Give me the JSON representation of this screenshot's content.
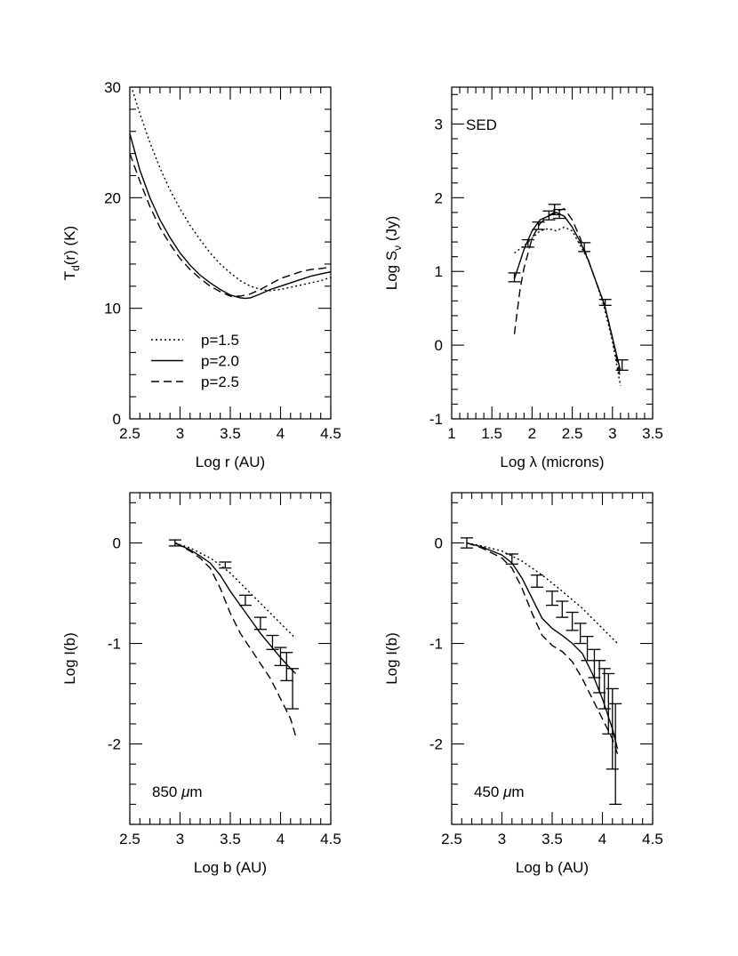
{
  "figure": {
    "panels": [
      {
        "name": "panel-temperature"
      },
      {
        "name": "panel-sed"
      },
      {
        "name": "panel-850"
      },
      {
        "name": "panel-450"
      }
    ]
  },
  "chart_data": [
    {
      "type": "line",
      "id": "temperature",
      "title": "",
      "xlabel": "Log r (AU)",
      "ylabel_parts": [
        "T",
        "d",
        "(r)  (K)"
      ],
      "xlim": [
        2.5,
        4.5
      ],
      "ylim": [
        0,
        30
      ],
      "xticks": [
        2.5,
        3,
        3.5,
        4,
        4.5
      ],
      "xtick_labels": [
        "2.5",
        "3",
        "3.5",
        "4",
        "4.5"
      ],
      "yticks": [
        0,
        10,
        20,
        30
      ],
      "ytick_labels": [
        "0",
        "10",
        "20",
        "30"
      ],
      "legend": {
        "placement": "lower-left",
        "entries": [
          {
            "label": "p=1.5",
            "style": "dotted"
          },
          {
            "label": "p=2.0",
            "style": "solid"
          },
          {
            "label": "p=2.5",
            "style": "dashed"
          }
        ]
      },
      "series": [
        {
          "name": "p=1.5",
          "style": "dotted",
          "x": [
            2.5,
            2.6,
            2.7,
            2.8,
            2.9,
            3.0,
            3.1,
            3.2,
            3.3,
            3.4,
            3.5,
            3.6,
            3.7,
            3.8,
            3.9,
            4.0,
            4.1,
            4.2,
            4.3,
            4.4,
            4.5
          ],
          "y": [
            30.5,
            27.6,
            25.0,
            22.7,
            20.7,
            19.0,
            17.5,
            16.2,
            15.0,
            14.0,
            13.2,
            12.5,
            12.0,
            11.7,
            11.6,
            11.7,
            11.9,
            12.1,
            12.3,
            12.5,
            12.8
          ]
        },
        {
          "name": "p=2.0",
          "style": "solid",
          "x": [
            2.5,
            2.6,
            2.7,
            2.8,
            2.9,
            3.0,
            3.1,
            3.2,
            3.3,
            3.4,
            3.5,
            3.6,
            3.65,
            3.7,
            3.8,
            3.9,
            4.0,
            4.1,
            4.2,
            4.3,
            4.4,
            4.5
          ],
          "y": [
            25.8,
            22.5,
            20.0,
            18.0,
            16.4,
            15.0,
            13.9,
            13.0,
            12.3,
            11.7,
            11.2,
            10.95,
            10.9,
            10.95,
            11.3,
            11.7,
            12.0,
            12.3,
            12.6,
            12.9,
            13.1,
            13.3
          ]
        },
        {
          "name": "p=2.5",
          "style": "dashed",
          "x": [
            2.5,
            2.6,
            2.7,
            2.8,
            2.9,
            3.0,
            3.1,
            3.2,
            3.3,
            3.4,
            3.5,
            3.6,
            3.7,
            3.8,
            3.9,
            4.0,
            4.1,
            4.2,
            4.3,
            4.4,
            4.5
          ],
          "y": [
            24.0,
            21.5,
            19.2,
            17.3,
            15.8,
            14.5,
            13.5,
            12.7,
            12.0,
            11.5,
            11.1,
            11.1,
            11.3,
            11.7,
            12.2,
            12.7,
            13.0,
            13.3,
            13.5,
            13.6,
            13.7
          ]
        }
      ]
    },
    {
      "type": "line",
      "id": "sed",
      "title": "",
      "annotation": "SED",
      "xlabel": "Log  λ  (microns)",
      "ylabel_parts": [
        "Log  S",
        "ν",
        "  (Jy)"
      ],
      "xlim": [
        1,
        3.5
      ],
      "ylim": [
        -1,
        3.5
      ],
      "xticks": [
        1,
        1.5,
        2,
        2.5,
        3,
        3.5
      ],
      "xtick_labels": [
        "1",
        "1.5",
        "2",
        "2.5",
        "3",
        "3.5"
      ],
      "yticks": [
        -1,
        0,
        1,
        2,
        3
      ],
      "ytick_labels": [
        "-1",
        "0",
        "1",
        "2",
        "3"
      ],
      "series": [
        {
          "name": "p=1.5",
          "style": "dotted",
          "x": [
            1.78,
            1.9,
            2.0,
            2.1,
            2.2,
            2.3,
            2.4,
            2.5,
            2.6,
            2.7,
            2.8,
            2.9,
            3.0,
            3.1
          ],
          "y": [
            1.25,
            1.35,
            1.45,
            1.55,
            1.58,
            1.55,
            1.6,
            1.55,
            1.35,
            1.15,
            0.85,
            0.5,
            0.05,
            -0.55
          ]
        },
        {
          "name": "p=2.0",
          "style": "solid",
          "x": [
            1.78,
            1.9,
            2.0,
            2.1,
            2.2,
            2.3,
            2.4,
            2.5,
            2.6,
            2.7,
            2.8,
            2.9,
            3.0,
            3.1
          ],
          "y": [
            0.9,
            1.3,
            1.55,
            1.7,
            1.75,
            1.8,
            1.75,
            1.6,
            1.4,
            1.15,
            0.85,
            0.55,
            0.1,
            -0.35
          ]
        },
        {
          "name": "p=2.5",
          "style": "dashed",
          "x": [
            1.78,
            1.85,
            1.9,
            2.0,
            2.1,
            2.2,
            2.3,
            2.4,
            2.5,
            2.6,
            2.7,
            2.8,
            2.9,
            3.0,
            3.1
          ],
          "y": [
            0.15,
            0.75,
            1.05,
            1.45,
            1.65,
            1.75,
            1.82,
            1.85,
            1.7,
            1.45,
            1.15,
            0.85,
            0.55,
            0.1,
            -0.45
          ]
        }
      ],
      "errorbars": [
        {
          "x": 1.78,
          "y": 0.92,
          "err": 0.06
        },
        {
          "x": 1.95,
          "y": 1.38,
          "err": 0.05
        },
        {
          "x": 2.08,
          "y": 1.62,
          "err": 0.05
        },
        {
          "x": 2.21,
          "y": 1.76,
          "err": 0.06
        },
        {
          "x": 2.28,
          "y": 1.84,
          "err": 0.07
        },
        {
          "x": 2.34,
          "y": 1.78,
          "err": 0.06
        },
        {
          "x": 2.65,
          "y": 1.33,
          "err": 0.06
        },
        {
          "x": 2.91,
          "y": 0.58,
          "err": 0.04
        },
        {
          "x": 3.12,
          "y": -0.27,
          "err": 0.07
        }
      ]
    },
    {
      "type": "line",
      "id": "profile-850",
      "title": "",
      "annotation_parts": [
        "850",
        "μ",
        "m"
      ],
      "xlabel": "Log b (AU)",
      "ylabel": "Log I(b)",
      "xlim": [
        2.5,
        4.5
      ],
      "ylim": [
        -2.8,
        0.5
      ],
      "xticks": [
        2.5,
        3,
        3.5,
        4,
        4.5
      ],
      "xtick_labels": [
        "2.5",
        "3",
        "3.5",
        "4",
        "4.5"
      ],
      "yticks": [
        -2,
        -1,
        0
      ],
      "ytick_labels": [
        "-2",
        "-1",
        "0"
      ],
      "series": [
        {
          "name": "p=1.5",
          "style": "dotted",
          "x": [
            2.95,
            3.1,
            3.2,
            3.3,
            3.4,
            3.5,
            3.6,
            3.7,
            3.8,
            3.9,
            4.0,
            4.1,
            4.15
          ],
          "y": [
            0.0,
            -0.05,
            -0.1,
            -0.15,
            -0.22,
            -0.3,
            -0.4,
            -0.5,
            -0.6,
            -0.7,
            -0.8,
            -0.9,
            -0.95
          ]
        },
        {
          "name": "p=2.0",
          "style": "solid",
          "x": [
            2.95,
            3.1,
            3.2,
            3.3,
            3.4,
            3.5,
            3.6,
            3.7,
            3.8,
            3.9,
            4.0,
            4.1,
            4.15
          ],
          "y": [
            0.0,
            -0.07,
            -0.13,
            -0.2,
            -0.32,
            -0.48,
            -0.62,
            -0.76,
            -0.9,
            -1.02,
            -1.14,
            -1.25,
            -1.3
          ]
        },
        {
          "name": "p=2.5",
          "style": "dashed",
          "x": [
            2.95,
            3.1,
            3.2,
            3.3,
            3.4,
            3.5,
            3.6,
            3.7,
            3.8,
            3.9,
            4.0,
            4.1,
            4.15
          ],
          "y": [
            0.0,
            -0.08,
            -0.15,
            -0.25,
            -0.45,
            -0.7,
            -0.9,
            -1.05,
            -1.2,
            -1.35,
            -1.55,
            -1.75,
            -1.92
          ]
        }
      ],
      "errorbars": [
        {
          "x": 2.95,
          "y": 0.0,
          "err": 0.03
        },
        {
          "x": 3.45,
          "y": -0.22,
          "err": 0.03
        },
        {
          "x": 3.65,
          "y": -0.57,
          "err": 0.05
        },
        {
          "x": 3.8,
          "y": -0.8,
          "err": 0.06
        },
        {
          "x": 3.92,
          "y": -0.99,
          "err": 0.07
        },
        {
          "x": 4.0,
          "y": -1.13,
          "err": 0.09
        },
        {
          "x": 4.06,
          "y": -1.23,
          "err": 0.14
        },
        {
          "x": 4.12,
          "y": -1.45,
          "err": 0.2
        }
      ]
    },
    {
      "type": "line",
      "id": "profile-450",
      "title": "",
      "annotation_parts": [
        "450",
        "μ",
        "m"
      ],
      "xlabel": "Log b (AU)",
      "ylabel": "Log I(b)",
      "xlim": [
        2.5,
        4.5
      ],
      "ylim": [
        -2.8,
        0.5
      ],
      "xticks": [
        2.5,
        3,
        3.5,
        4,
        4.5
      ],
      "xtick_labels": [
        "2.5",
        "3",
        "3.5",
        "4",
        "4.5"
      ],
      "yticks": [
        -2,
        -1,
        0
      ],
      "ytick_labels": [
        "-2",
        "-1",
        "0"
      ],
      "series": [
        {
          "name": "p=1.5",
          "style": "dotted",
          "x": [
            2.65,
            2.8,
            3.0,
            3.2,
            3.4,
            3.6,
            3.8,
            4.0,
            4.15
          ],
          "y": [
            0.0,
            -0.03,
            -0.08,
            -0.18,
            -0.32,
            -0.48,
            -0.65,
            -0.85,
            -1.0
          ]
        },
        {
          "name": "p=2.0",
          "style": "solid",
          "x": [
            2.65,
            2.8,
            3.0,
            3.1,
            3.2,
            3.3,
            3.4,
            3.5,
            3.6,
            3.7,
            3.8,
            3.9,
            4.0,
            4.1,
            4.15
          ],
          "y": [
            0.0,
            -0.04,
            -0.12,
            -0.2,
            -0.35,
            -0.55,
            -0.75,
            -0.85,
            -0.92,
            -1.0,
            -1.1,
            -1.3,
            -1.55,
            -1.85,
            -2.05
          ]
        },
        {
          "name": "p=2.5",
          "style": "dashed",
          "x": [
            2.65,
            2.8,
            3.0,
            3.1,
            3.2,
            3.3,
            3.4,
            3.5,
            3.6,
            3.7,
            3.8,
            3.9,
            4.0,
            4.1,
            4.15
          ],
          "y": [
            0.0,
            -0.05,
            -0.15,
            -0.25,
            -0.45,
            -0.7,
            -0.92,
            -1.02,
            -1.08,
            -1.18,
            -1.35,
            -1.55,
            -1.75,
            -1.95,
            -2.1
          ]
        }
      ],
      "errorbars": [
        {
          "x": 2.65,
          "y": 0.0,
          "err": 0.05
        },
        {
          "x": 3.1,
          "y": -0.16,
          "err": 0.05
        },
        {
          "x": 3.35,
          "y": -0.38,
          "err": 0.06
        },
        {
          "x": 3.5,
          "y": -0.55,
          "err": 0.07
        },
        {
          "x": 3.6,
          "y": -0.66,
          "err": 0.08
        },
        {
          "x": 3.7,
          "y": -0.78,
          "err": 0.09
        },
        {
          "x": 3.78,
          "y": -0.9,
          "err": 0.1
        },
        {
          "x": 3.85,
          "y": -1.05,
          "err": 0.12
        },
        {
          "x": 3.92,
          "y": -1.2,
          "err": 0.14
        },
        {
          "x": 3.97,
          "y": -1.33,
          "err": 0.16
        },
        {
          "x": 4.02,
          "y": -1.45,
          "err": 0.2
        },
        {
          "x": 4.06,
          "y": -1.6,
          "err": 0.3
        },
        {
          "x": 4.1,
          "y": -1.85,
          "err": 0.4
        },
        {
          "x": 4.13,
          "y": -2.1,
          "err": 0.5
        }
      ]
    }
  ]
}
